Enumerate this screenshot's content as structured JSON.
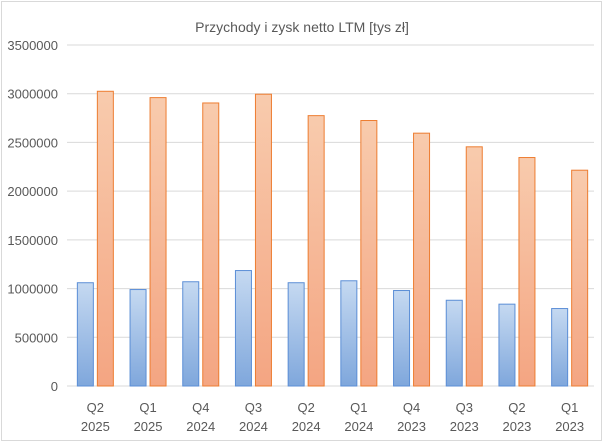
{
  "chart_data": {
    "type": "bar",
    "title": "Przychody i zysk netto LTM [tys zł]",
    "categories": [
      [
        "Q2",
        "2025"
      ],
      [
        "Q1",
        "2025"
      ],
      [
        "Q4",
        "2024"
      ],
      [
        "Q3",
        "2024"
      ],
      [
        "Q2",
        "2024"
      ],
      [
        "Q1",
        "2024"
      ],
      [
        "Q4",
        "2023"
      ],
      [
        "Q3",
        "2023"
      ],
      [
        "Q2",
        "2023"
      ],
      [
        "Q1",
        "2023"
      ]
    ],
    "series": [
      {
        "values": [
          1060000,
          990000,
          1070000,
          1185000,
          1060000,
          1080000,
          980000,
          880000,
          840000,
          795000
        ],
        "color": "#8eb4e3"
      },
      {
        "values": [
          3025000,
          2960000,
          2905000,
          2995000,
          2775000,
          2725000,
          2595000,
          2455000,
          2345000,
          2215000
        ],
        "color": "#f4a582"
      }
    ],
    "y_ticks": [
      "0",
      "500000",
      "1000000",
      "1500000",
      "2000000",
      "2500000",
      "3000000",
      "3500000"
    ],
    "ylim": [
      0,
      3500000
    ],
    "grid": true,
    "legend": "none"
  }
}
